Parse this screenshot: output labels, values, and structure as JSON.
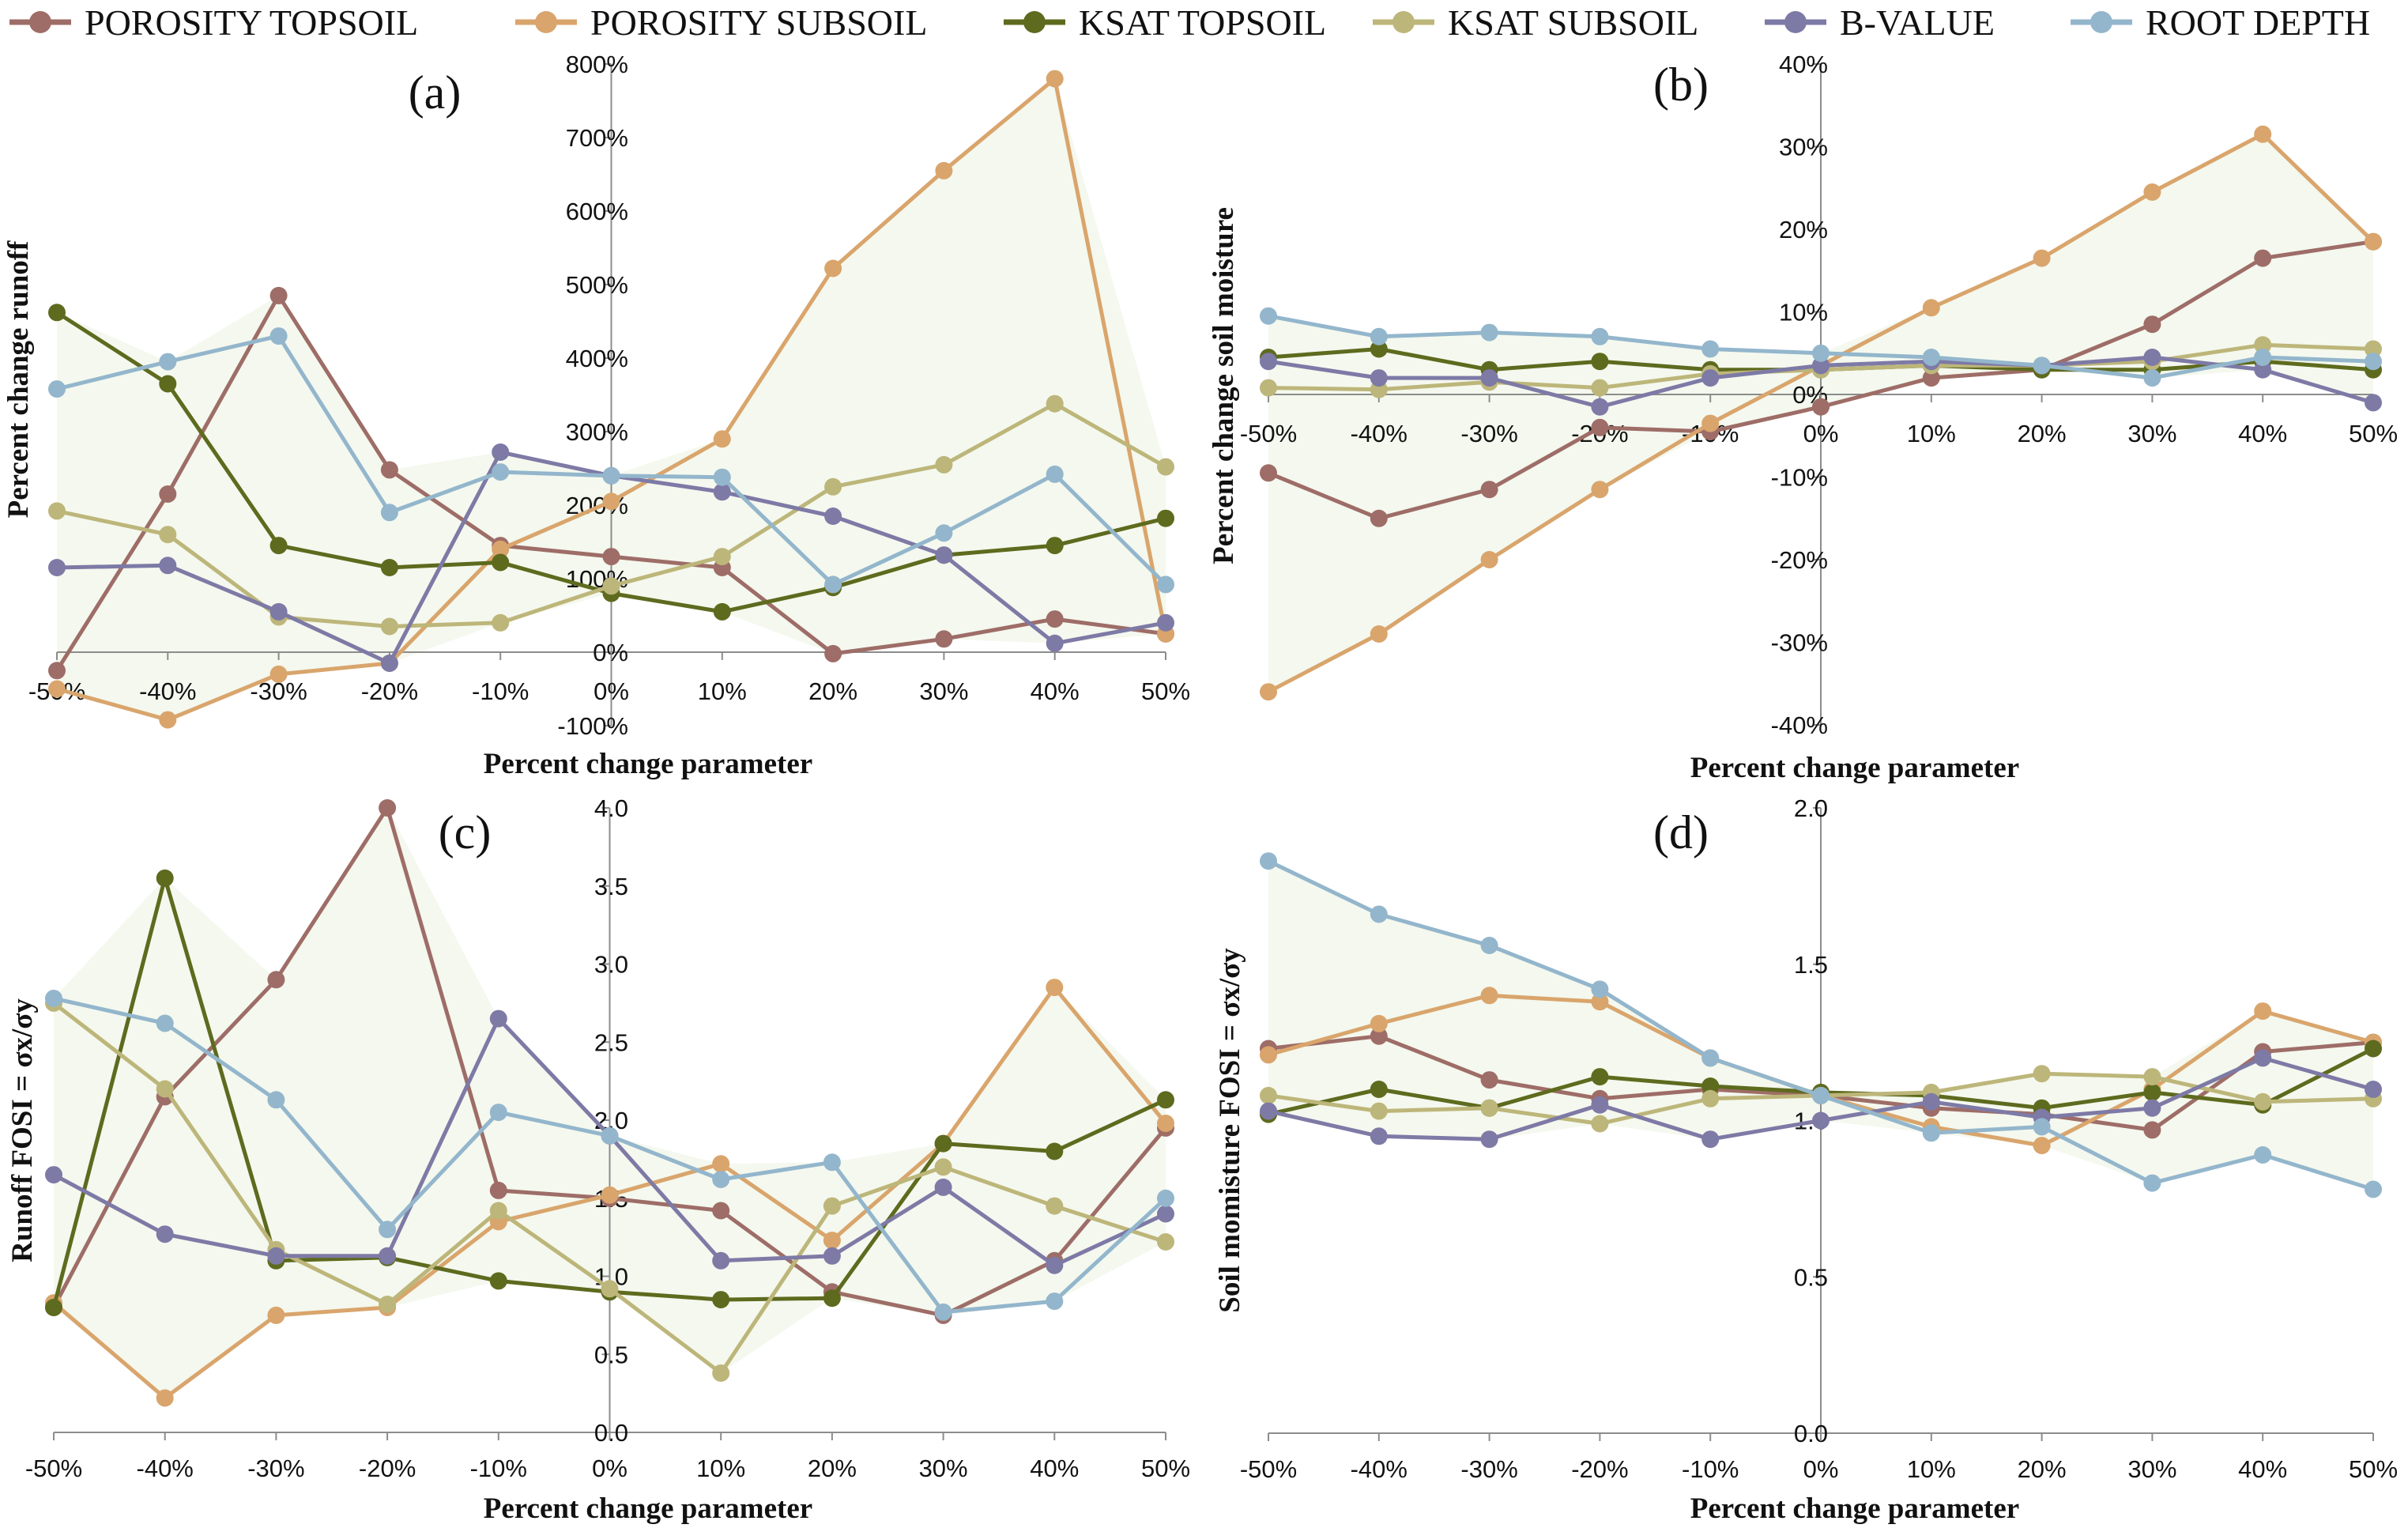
{
  "x_categories": [
    "-50%",
    "-40%",
    "-30%",
    "-20%",
    "-10%",
    "0%",
    "10%",
    "20%",
    "30%",
    "40%",
    "50%"
  ],
  "legend": [
    {
      "key": "porosity_topsoil",
      "label": "POROSITY  TOPSOIL",
      "color": "#9e6d67"
    },
    {
      "key": "porosity_subsoil",
      "label": "POROSITY  SUBSOIL",
      "color": "#d9a56c"
    },
    {
      "key": "ksat_topsoil",
      "label": "KSAT  TOPSOIL",
      "color": "#5e6a1e"
    },
    {
      "key": "ksat_subsoil",
      "label": "KSAT  SUBSOIL",
      "color": "#bdb67a"
    },
    {
      "key": "b_value",
      "label": "B-VALUE",
      "color": "#7d7aa6"
    },
    {
      "key": "root_depth",
      "label": "ROOT  DEPTH",
      "color": "#93b6cc"
    }
  ],
  "chart_data": [
    {
      "id": "a",
      "type": "line",
      "panel_label": "(a)",
      "xlabel": "Percent change parameter",
      "ylabel": "Percent change runoff",
      "ylim": [
        -100,
        800
      ],
      "yticks": [
        "-100%",
        "0%",
        "100%",
        "200%",
        "300%",
        "400%",
        "500%",
        "600%",
        "700%",
        "800%"
      ],
      "tick_step": 100,
      "series": [
        {
          "key": "porosity_topsoil",
          "values": [
            -25,
            215,
            485,
            248,
            145,
            130,
            115,
            -2,
            18,
            45,
            25
          ]
        },
        {
          "key": "porosity_subsoil",
          "values": [
            -50,
            -92,
            -30,
            -15,
            140,
            205,
            290,
            522,
            655,
            780,
            25
          ]
        },
        {
          "key": "ksat_topsoil",
          "values": [
            462,
            365,
            145,
            115,
            122,
            80,
            55,
            88,
            132,
            145,
            182
          ]
        },
        {
          "key": "ksat_subsoil",
          "values": [
            192,
            160,
            48,
            35,
            40,
            90,
            130,
            225,
            255,
            338,
            252
          ]
        },
        {
          "key": "b_value",
          "values": [
            115,
            118,
            55,
            -15,
            272,
            240,
            218,
            185,
            132,
            12,
            40
          ]
        },
        {
          "key": "root_depth",
          "values": [
            358,
            395,
            430,
            190,
            245,
            240,
            238,
            92,
            162,
            242,
            92
          ]
        }
      ]
    },
    {
      "id": "b",
      "type": "line",
      "panel_label": "(b)",
      "xlabel": "Percent change parameter",
      "ylabel": "Percent change soil moisture",
      "ylim": [
        -40,
        40
      ],
      "yticks": [
        "-40%",
        "-30%",
        "-20%",
        "-10%",
        "0%",
        "10%",
        "20%",
        "30%",
        "40%"
      ],
      "tick_step": 10,
      "series": [
        {
          "key": "porosity_topsoil",
          "values": [
            -9.5,
            -15,
            -11.5,
            -4,
            -4.5,
            -1.5,
            2,
            3,
            8.5,
            16.5,
            18.5
          ]
        },
        {
          "key": "porosity_subsoil",
          "values": [
            -36,
            -29,
            -20,
            -11.5,
            -3.5,
            3.5,
            10.5,
            16.5,
            24.5,
            31.5,
            18.5
          ]
        },
        {
          "key": "ksat_topsoil",
          "values": [
            4.5,
            5.5,
            3,
            4,
            3,
            3,
            3.5,
            3,
            3,
            4,
            3
          ]
        },
        {
          "key": "ksat_subsoil",
          "values": [
            0.8,
            0.6,
            1.5,
            0.8,
            2.5,
            3,
            3.5,
            3.5,
            4,
            6,
            5.5
          ]
        },
        {
          "key": "b_value",
          "values": [
            4,
            2,
            2,
            -1.5,
            2,
            3.5,
            4,
            3.5,
            4.5,
            3,
            -1
          ]
        },
        {
          "key": "root_depth",
          "values": [
            9.5,
            7,
            7.5,
            7,
            5.5,
            5,
            4.5,
            3.5,
            2,
            4.5,
            4
          ]
        }
      ]
    },
    {
      "id": "c",
      "type": "line",
      "panel_label": "(c)",
      "xlabel": "Percent change parameter",
      "ylabel": "Runoff FOSI = σx/σy",
      "ylim": [
        0,
        4
      ],
      "yticks": [
        "0.0",
        "0.5",
        "1.0",
        "1.5",
        "2.0",
        "2.5",
        "3.0",
        "3.5",
        "4.0"
      ],
      "tick_step": 0.5,
      "series": [
        {
          "key": "porosity_topsoil",
          "values": [
            0.8,
            2.15,
            2.9,
            4.0,
            1.55,
            1.5,
            1.42,
            0.9,
            0.75,
            1.1,
            1.95
          ]
        },
        {
          "key": "porosity_subsoil",
          "values": [
            0.83,
            0.22,
            0.75,
            0.8,
            1.35,
            1.52,
            1.72,
            1.23,
            1.85,
            2.85,
            1.98
          ]
        },
        {
          "key": "ksat_topsoil",
          "values": [
            0.8,
            3.55,
            1.1,
            1.12,
            0.97,
            0.9,
            0.85,
            0.86,
            1.85,
            1.8,
            2.13
          ]
        },
        {
          "key": "ksat_subsoil",
          "values": [
            2.75,
            2.2,
            1.17,
            0.82,
            1.42,
            0.92,
            0.38,
            1.45,
            1.7,
            1.45,
            1.22
          ]
        },
        {
          "key": "b_value",
          "values": [
            1.65,
            1.27,
            1.13,
            1.13,
            2.65,
            1.9,
            1.1,
            1.13,
            1.57,
            1.07,
            1.4
          ]
        },
        {
          "key": "root_depth",
          "values": [
            2.78,
            2.62,
            2.13,
            1.3,
            2.05,
            1.9,
            1.62,
            1.73,
            0.77,
            0.84,
            1.5
          ]
        }
      ]
    },
    {
      "id": "d",
      "type": "line",
      "panel_label": "(d)",
      "xlabel": "Percent change parameter",
      "ylabel": "Soil momisture FOSI = σx/σy",
      "ylim": [
        0,
        2
      ],
      "yticks": [
        "0.0",
        "0.5",
        "1.0",
        "1.5",
        "2.0"
      ],
      "tick_step": 0.5,
      "series": [
        {
          "key": "porosity_topsoil",
          "values": [
            1.23,
            1.27,
            1.13,
            1.07,
            1.1,
            1.08,
            1.04,
            1.02,
            0.97,
            1.22,
            1.25
          ]
        },
        {
          "key": "porosity_subsoil",
          "values": [
            1.21,
            1.31,
            1.4,
            1.38,
            1.2,
            1.08,
            0.98,
            0.92,
            1.1,
            1.35,
            1.25
          ]
        },
        {
          "key": "ksat_topsoil",
          "values": [
            1.02,
            1.1,
            1.04,
            1.14,
            1.11,
            1.09,
            1.08,
            1.04,
            1.09,
            1.05,
            1.23
          ]
        },
        {
          "key": "ksat_subsoil",
          "values": [
            1.08,
            1.03,
            1.04,
            0.99,
            1.07,
            1.08,
            1.09,
            1.15,
            1.14,
            1.06,
            1.07
          ]
        },
        {
          "key": "b_value",
          "values": [
            1.03,
            0.95,
            0.94,
            1.05,
            0.94,
            1.0,
            1.06,
            1.01,
            1.04,
            1.2,
            1.1
          ]
        },
        {
          "key": "root_depth",
          "values": [
            1.83,
            1.66,
            1.56,
            1.42,
            1.2,
            1.08,
            0.96,
            0.98,
            0.8,
            0.89,
            0.78
          ]
        }
      ]
    }
  ]
}
